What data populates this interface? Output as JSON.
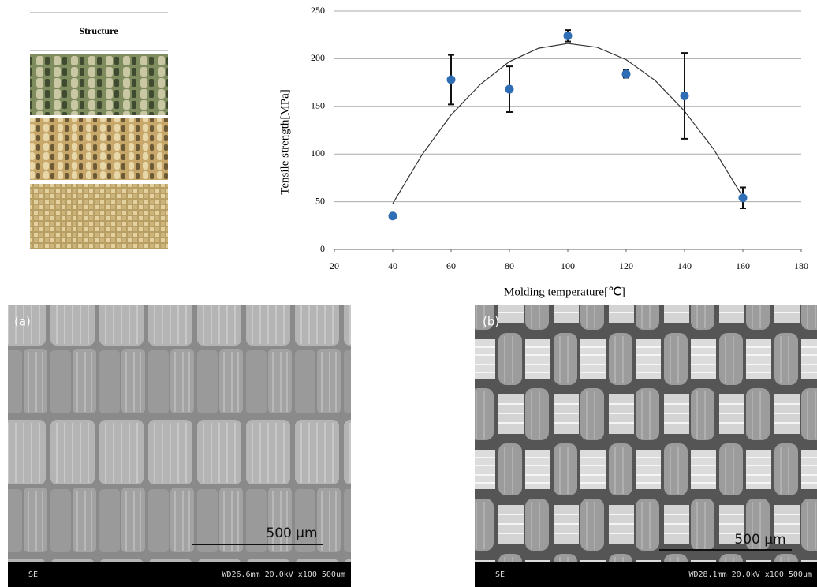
{
  "structure_panel": {
    "title": "Structure"
  },
  "chart_data": {
    "type": "scatter",
    "y_label": "Tensile strength[MPa]",
    "x_label": "Molding temperature[℃]",
    "x": [
      40,
      60,
      80,
      100,
      120,
      140,
      160
    ],
    "values": [
      35,
      178,
      168,
      224,
      184,
      161,
      54
    ],
    "errors": [
      0,
      26,
      24,
      6,
      4,
      45,
      11
    ],
    "color": "#2f6db5",
    "trend": {
      "x": [
        40,
        50,
        60,
        70,
        80,
        90,
        100,
        110,
        120,
        130,
        140,
        150,
        160
      ],
      "values": [
        48,
        99,
        141,
        173,
        197,
        211,
        216,
        212,
        199,
        177,
        145,
        105,
        55
      ],
      "color": "#333333"
    },
    "xlim": [
      20,
      180
    ],
    "xticks": [
      20,
      40,
      60,
      80,
      100,
      120,
      140,
      160,
      180
    ],
    "ylim": [
      0,
      250
    ],
    "yticks": [
      0,
      50,
      100,
      150,
      200,
      250
    ],
    "grid": true
  },
  "sem_a": {
    "label": "(a)",
    "scale": "500 μm",
    "detector": "SE",
    "info": "WD26.6mm 20.0kV x100 500um"
  },
  "sem_b": {
    "label": "(b)",
    "scale": "500 μm",
    "detector": "SE",
    "info": "WD28.1mm 20.0kV x100 500um"
  }
}
